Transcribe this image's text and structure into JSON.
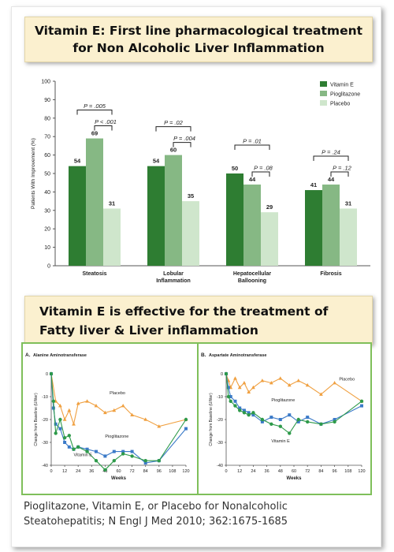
{
  "banner1": {
    "line1": "Vitamin E: First line pharmacological treatment",
    "line2": "for Non Alcoholic Liver Inflammation"
  },
  "banner2": {
    "line1": "Vitamin E is effective for the treatment of",
    "line2": "Fatty liver & Liver inflammation"
  },
  "citation": {
    "line1": "Pioglitazone, Vitamin E, or Placebo for Nonalcoholic",
    "line2": "Steatohepatitis; N Engl J Med 2010; 362:1675-1685"
  },
  "colors": {
    "vitamin_e": "#2e7d32",
    "pioglitazone": "#86b884",
    "placebo": "#cfe6cc",
    "placebo_line": "#f0a040",
    "pio_line": "#3b7ac8",
    "vite_line": "#2e9a4a",
    "panel_border": "#7fbf5a"
  },
  "chart_data": [
    {
      "type": "bar",
      "ylabel": "Patients With Improvement (%)",
      "ylim": [
        0,
        100
      ],
      "yticks": [
        0,
        10,
        20,
        30,
        40,
        50,
        60,
        70,
        80,
        90,
        100
      ],
      "categories": [
        "Steatosis",
        "Lobular Inflammation",
        "Hepatocellular Ballooning",
        "Fibrosis"
      ],
      "category_lines": [
        [
          "Steatosis"
        ],
        [
          "Lobular",
          "Inflammation"
        ],
        [
          "Hepatocellular",
          "Ballooning"
        ],
        [
          "Fibrosis"
        ]
      ],
      "series": [
        {
          "name": "Vitamin E",
          "values": [
            54,
            54,
            50,
            41
          ]
        },
        {
          "name": "Pioglitazone",
          "values": [
            69,
            60,
            44,
            44
          ]
        },
        {
          "name": "Placebo",
          "values": [
            31,
            35,
            29,
            31
          ]
        }
      ],
      "legend": "top-right",
      "pvalues": [
        {
          "vitamin_e_vs_placebo": "P = .005",
          "pioglitazone_vs_placebo": "P < .001"
        },
        {
          "vitamin_e_vs_placebo": "P = .02",
          "pioglitazone_vs_placebo": "P = .004"
        },
        {
          "vitamin_e_vs_placebo": "P = .01",
          "pioglitazone_vs_placebo": "P = .08"
        },
        {
          "vitamin_e_vs_placebo": "P = .24",
          "pioglitazone_vs_placebo": "P = .12"
        }
      ]
    },
    {
      "type": "line",
      "panel_label": "A",
      "title": "Alanine Aminotransferase",
      "xlabel": "Weeks",
      "ylabel": "Change from Baseline (U/liter)",
      "xlim": [
        0,
        120
      ],
      "ylim": [
        -40,
        0
      ],
      "xticks": [
        0,
        12,
        24,
        36,
        48,
        60,
        72,
        84,
        96,
        108,
        120
      ],
      "yticks": [
        0,
        -10,
        -20,
        -30,
        -40
      ],
      "series": [
        {
          "name": "Placebo",
          "x": [
            0,
            4,
            8,
            12,
            16,
            20,
            24,
            32,
            40,
            48,
            56,
            64,
            72,
            84,
            96,
            120
          ],
          "y": [
            0,
            -12,
            -14,
            -20,
            -16,
            -22,
            -13,
            -12,
            -14,
            -17,
            -16,
            -14,
            -18,
            -20,
            -23,
            -20
          ]
        },
        {
          "name": "Pioglitazone",
          "x": [
            0,
            2,
            4,
            8,
            12,
            16,
            20,
            24,
            32,
            40,
            48,
            56,
            64,
            72,
            84,
            96,
            120
          ],
          "y": [
            0,
            -15,
            -22,
            -24,
            -30,
            -32,
            -33,
            -32,
            -33,
            -34,
            -36,
            -34,
            -34,
            -34,
            -39,
            -38,
            -24
          ]
        },
        {
          "name": "Vitamin E",
          "x": [
            0,
            2,
            4,
            8,
            12,
            16,
            20,
            24,
            32,
            40,
            48,
            56,
            64,
            72,
            84,
            96,
            120
          ],
          "y": [
            0,
            -12,
            -26,
            -20,
            -28,
            -27,
            -33,
            -32,
            -34,
            -38,
            -42,
            -38,
            -35,
            -36,
            -38,
            -38,
            -20
          ]
        }
      ],
      "series_labels": [
        "Placebo",
        "Pioglitazone",
        "Vitamin E"
      ]
    },
    {
      "type": "line",
      "panel_label": "B",
      "title": "Aspartate Aminotransferase",
      "xlabel": "Weeks",
      "ylabel": "Change from Baseline (U/liter)",
      "xlim": [
        0,
        120
      ],
      "ylim": [
        -40,
        0
      ],
      "xticks": [
        0,
        12,
        24,
        36,
        48,
        60,
        72,
        84,
        96,
        108,
        120
      ],
      "yticks": [
        0,
        -10,
        -20,
        -30,
        -40
      ],
      "series": [
        {
          "name": "Placebo",
          "x": [
            0,
            2,
            4,
            8,
            12,
            16,
            20,
            24,
            32,
            40,
            48,
            56,
            64,
            72,
            84,
            96,
            120
          ],
          "y": [
            0,
            -3,
            -6,
            -2,
            -6,
            -4,
            -8,
            -6,
            -3,
            -4,
            -2,
            -5,
            -3,
            -5,
            -9,
            -4,
            -12
          ]
        },
        {
          "name": "Pioglitazone",
          "x": [
            0,
            2,
            4,
            8,
            12,
            16,
            20,
            24,
            32,
            40,
            48,
            56,
            64,
            72,
            84,
            96,
            120
          ],
          "y": [
            0,
            -6,
            -10,
            -12,
            -15,
            -16,
            -17,
            -18,
            -21,
            -19,
            -20,
            -18,
            -21,
            -19,
            -22,
            -20,
            -14
          ]
        },
        {
          "name": "Vitamin E",
          "x": [
            0,
            2,
            4,
            8,
            12,
            16,
            20,
            24,
            32,
            40,
            48,
            56,
            64,
            72,
            84,
            96,
            120
          ],
          "y": [
            0,
            -10,
            -12,
            -14,
            -16,
            -17,
            -18,
            -17,
            -20,
            -22,
            -23,
            -26,
            -20,
            -21,
            -22,
            -21,
            -12
          ]
        }
      ],
      "series_labels": [
        "Placebo",
        "Pioglitazone",
        "Vitamin E"
      ]
    }
  ]
}
